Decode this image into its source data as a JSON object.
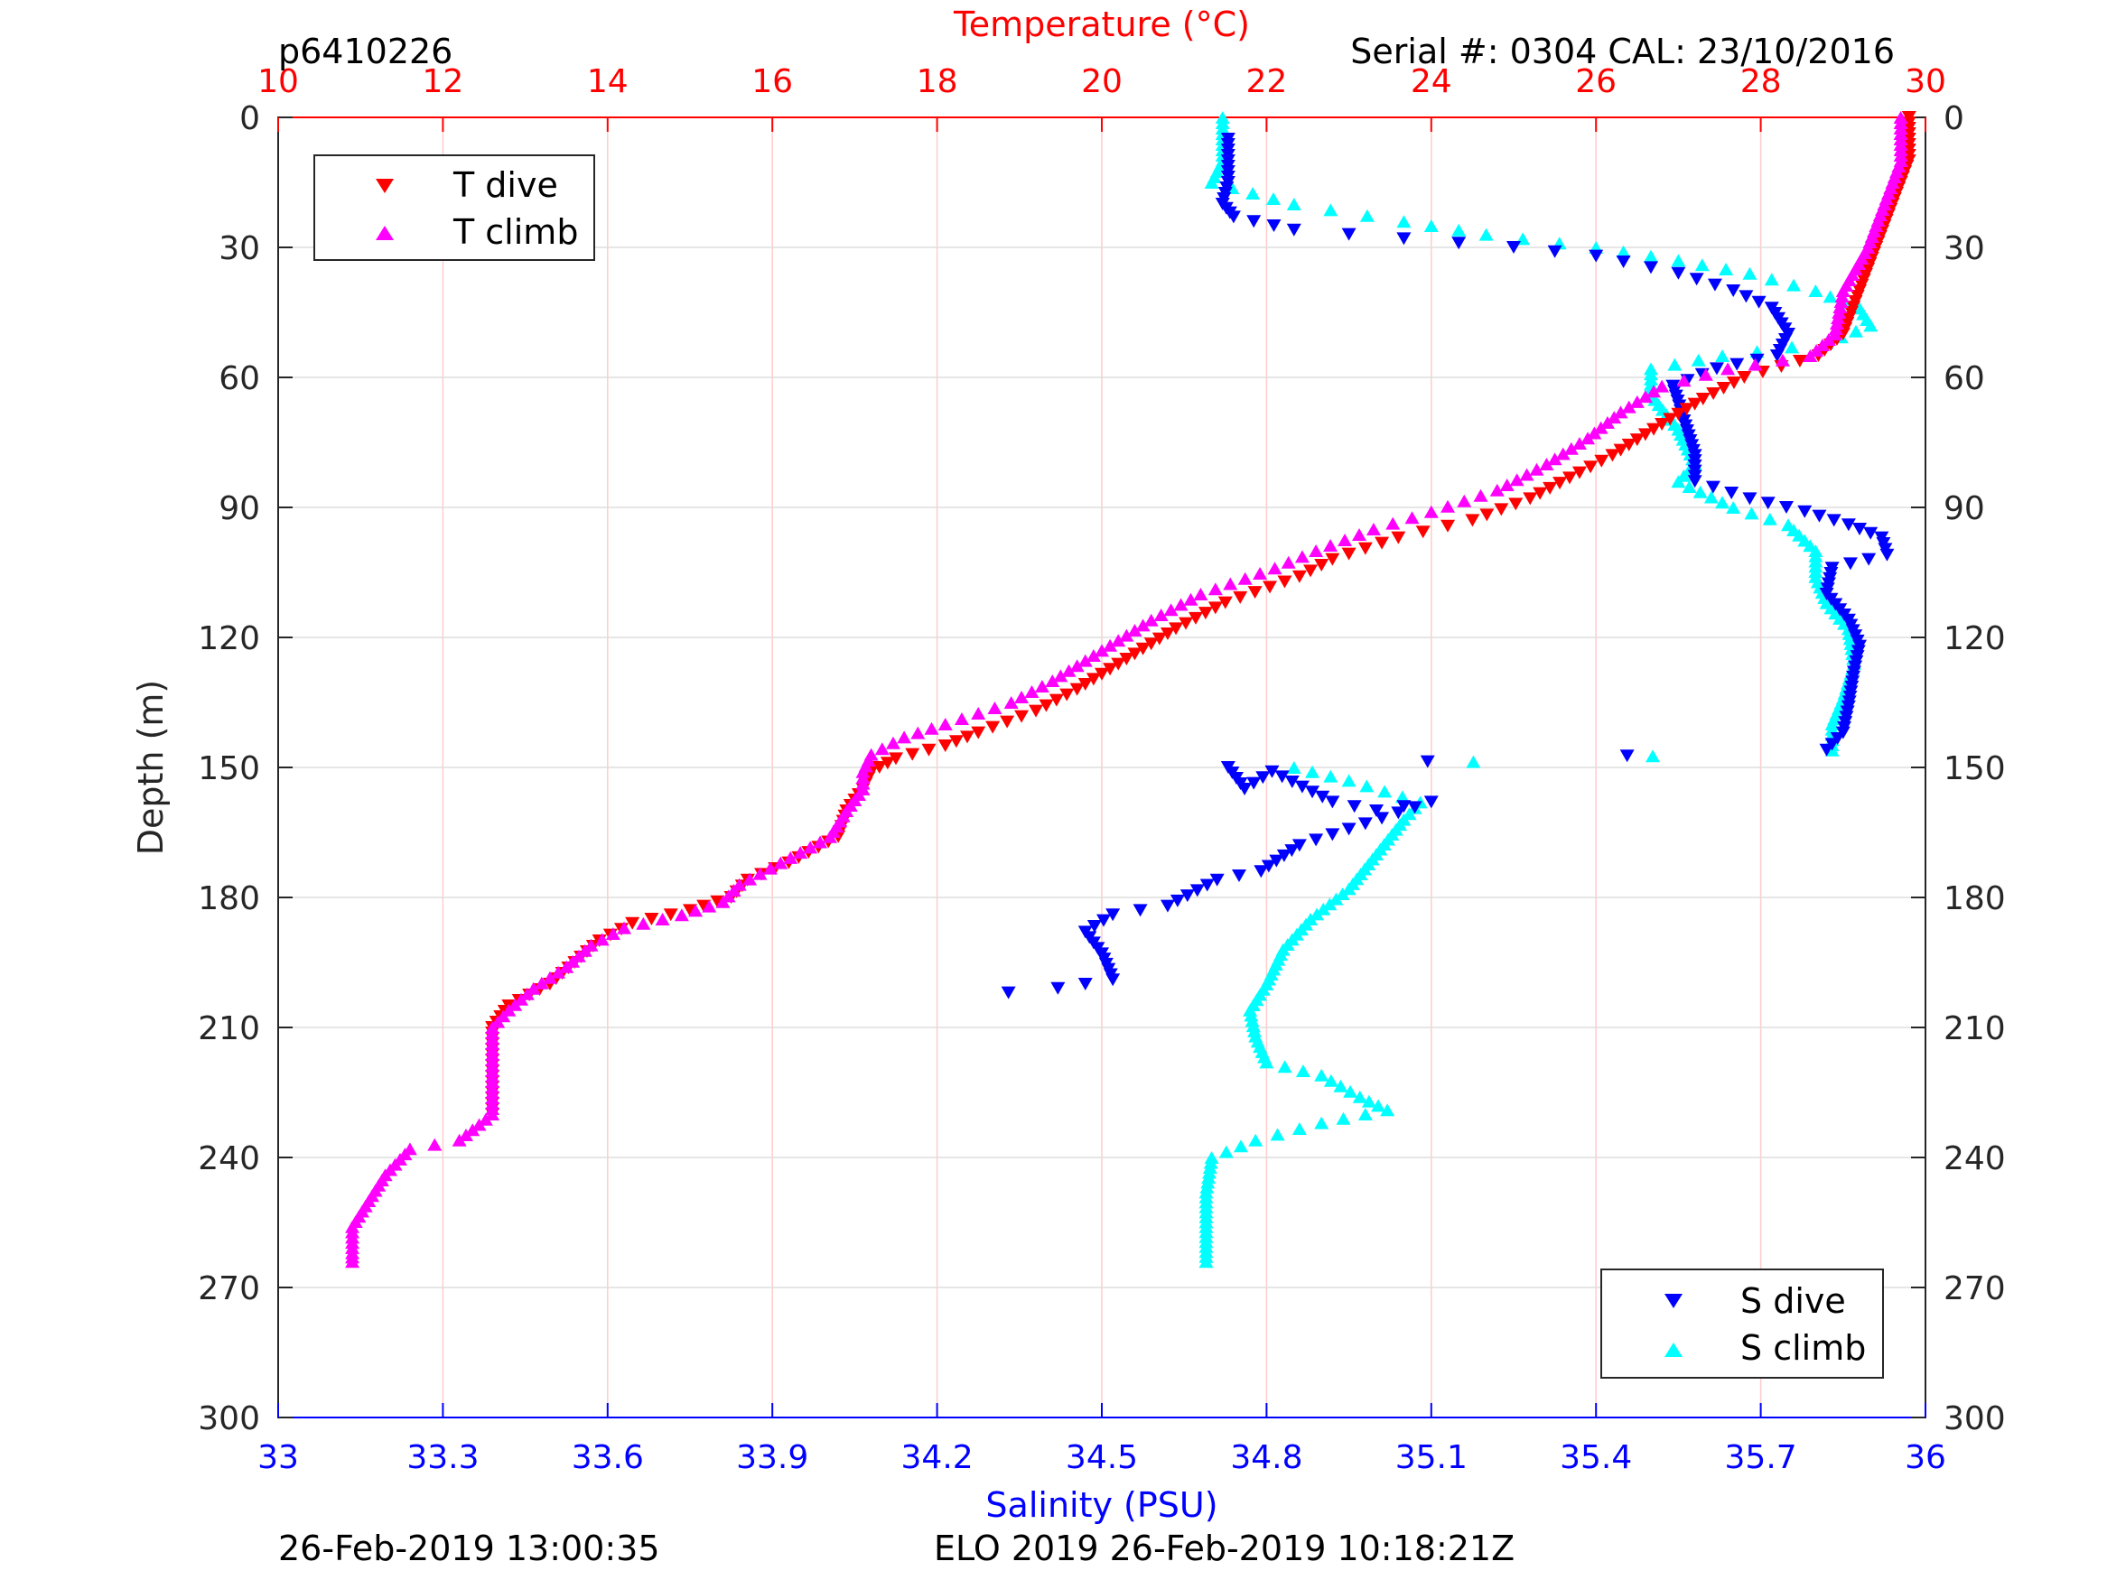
{
  "header": {
    "glider_id": "p6410226",
    "serial_cal": "Serial #: 0304  CAL: 23/10/2016"
  },
  "footer": {
    "left_timestamp": "26-Feb-2019 13:00:35",
    "mission": "ELO 2019 26-Feb-2019 10:18:21Z"
  },
  "colors": {
    "t_dive": "#ff0000",
    "t_climb": "#ff00ff",
    "s_dive": "#0000ff",
    "s_climb": "#00ffff",
    "temperature_axis": "#ff0000",
    "salinity_axis": "#0000ff",
    "grid_temperature": "#ffcccc",
    "grid_depth": "#dddddd"
  },
  "chart_data": {
    "type": "scatter",
    "ylabel": "Depth (m)",
    "x_top_label": "Temperature (°C)",
    "x_bottom_label": "Salinity (PSU)",
    "ylim": [
      0,
      300
    ],
    "y_reversed": true,
    "temperature_lim": [
      10,
      30
    ],
    "salinity_lim": [
      33,
      36
    ],
    "y_ticks": [
      "0",
      "30",
      "60",
      "90",
      "120",
      "150",
      "180",
      "210",
      "240",
      "270",
      "300"
    ],
    "temperature_ticks": [
      "10",
      "12",
      "14",
      "16",
      "18",
      "20",
      "22",
      "24",
      "26",
      "28",
      "30"
    ],
    "salinity_ticks": [
      "33",
      "33.3",
      "33.6",
      "33.9",
      "34.2",
      "34.5",
      "34.8",
      "35.1",
      "35.4",
      "35.7",
      "36"
    ],
    "grid": true,
    "legend_top": {
      "placement": "top-left",
      "entries": [
        {
          "name": "T dive",
          "marker": "triangle-down",
          "color": "#ff0000"
        },
        {
          "name": "T climb",
          "marker": "triangle-up",
          "color": "#ff00ff"
        }
      ]
    },
    "legend_bottom": {
      "placement": "bottom-right",
      "entries": [
        {
          "name": "S dive",
          "marker": "triangle-down",
          "color": "#0000ff"
        },
        {
          "name": "S climb",
          "marker": "triangle-up",
          "color": "#00ffff"
        }
      ]
    },
    "series": [
      {
        "name": "T dive",
        "axis": "temperature",
        "marker": "triangle-down",
        "color": "#ff0000",
        "points": [
          [
            29.8,
            0
          ],
          [
            29.8,
            10
          ],
          [
            29.6,
            20
          ],
          [
            29.4,
            30
          ],
          [
            29.2,
            40
          ],
          [
            29.0,
            50
          ],
          [
            28.7,
            55
          ],
          [
            27.8,
            60
          ],
          [
            27.3,
            65
          ],
          [
            26.7,
            72
          ],
          [
            26.2,
            78
          ],
          [
            25.8,
            82
          ],
          [
            25.2,
            88
          ],
          [
            24.5,
            93
          ],
          [
            23.6,
            97
          ],
          [
            22.8,
            102
          ],
          [
            22.4,
            106
          ],
          [
            21.5,
            112
          ],
          [
            20.9,
            118
          ],
          [
            20.3,
            125
          ],
          [
            19.7,
            132
          ],
          [
            19.2,
            137
          ],
          [
            18.5,
            142
          ],
          [
            18.1,
            145
          ],
          [
            17.5,
            148
          ],
          [
            17.2,
            151
          ],
          [
            17.1,
            155
          ],
          [
            16.9,
            160
          ],
          [
            16.8,
            166
          ],
          [
            16.2,
            172
          ],
          [
            15.7,
            176
          ],
          [
            15.5,
            180
          ],
          [
            15.0,
            183
          ],
          [
            14.3,
            186
          ],
          [
            13.9,
            190
          ],
          [
            13.6,
            195
          ],
          [
            13.3,
            200
          ],
          [
            12.8,
            205
          ],
          [
            12.6,
            210
          ],
          [
            12.6,
            220
          ],
          [
            12.6,
            230
          ]
        ]
      },
      {
        "name": "T climb",
        "axis": "temperature",
        "marker": "triangle-up",
        "color": "#ff00ff",
        "points": [
          [
            29.7,
            0
          ],
          [
            29.7,
            10
          ],
          [
            29.5,
            20
          ],
          [
            29.3,
            30
          ],
          [
            29.0,
            40
          ],
          [
            28.9,
            50
          ],
          [
            28.6,
            55
          ],
          [
            27.6,
            58
          ],
          [
            26.8,
            62
          ],
          [
            26.3,
            68
          ],
          [
            25.9,
            74
          ],
          [
            25.4,
            80
          ],
          [
            24.8,
            86
          ],
          [
            24.0,
            91
          ],
          [
            23.3,
            95
          ],
          [
            22.6,
            100
          ],
          [
            22.1,
            104
          ],
          [
            21.2,
            110
          ],
          [
            20.6,
            116
          ],
          [
            20.0,
            123
          ],
          [
            19.4,
            130
          ],
          [
            18.9,
            135
          ],
          [
            18.1,
            140
          ],
          [
            17.6,
            143
          ],
          [
            17.2,
            147
          ],
          [
            17.1,
            151
          ],
          [
            17.1,
            155
          ],
          [
            16.9,
            160
          ],
          [
            16.7,
            166
          ],
          [
            16.1,
            172
          ],
          [
            15.6,
            177
          ],
          [
            15.4,
            181
          ],
          [
            14.9,
            184
          ],
          [
            14.2,
            187
          ],
          [
            13.8,
            191
          ],
          [
            13.5,
            196
          ],
          [
            13.1,
            201
          ],
          [
            12.8,
            206
          ],
          [
            12.6,
            210
          ],
          [
            12.6,
            220
          ],
          [
            12.6,
            230
          ],
          [
            12.2,
            236
          ],
          [
            11.6,
            238
          ],
          [
            11.3,
            244
          ],
          [
            11.1,
            250
          ],
          [
            10.9,
            256
          ],
          [
            10.9,
            262
          ],
          [
            10.9,
            264
          ]
        ]
      },
      {
        "name": "S dive",
        "axis": "salinity",
        "marker": "triangle-down",
        "color": "#0000ff",
        "points": [
          [
            34.73,
            5
          ],
          [
            34.73,
            15
          ],
          [
            34.72,
            20
          ],
          [
            34.74,
            23
          ],
          [
            34.85,
            26
          ],
          [
            35.05,
            28
          ],
          [
            35.25,
            30
          ],
          [
            35.4,
            32
          ],
          [
            35.55,
            36
          ],
          [
            35.65,
            40
          ],
          [
            35.72,
            44
          ],
          [
            35.75,
            50
          ],
          [
            35.73,
            55
          ],
          [
            35.62,
            58
          ],
          [
            35.54,
            62
          ],
          [
            35.56,
            70
          ],
          [
            35.58,
            78
          ],
          [
            35.58,
            84
          ],
          [
            35.68,
            88
          ],
          [
            35.78,
            91
          ],
          [
            35.86,
            94
          ],
          [
            35.92,
            97
          ],
          [
            35.93,
            101
          ],
          [
            35.83,
            104
          ],
          [
            35.82,
            110
          ],
          [
            35.86,
            116
          ],
          [
            35.88,
            122
          ],
          [
            35.87,
            128
          ],
          [
            35.86,
            136
          ],
          [
            35.85,
            142
          ],
          [
            35.82,
            146
          ],
          [
            34.73,
            150
          ],
          [
            34.76,
            155
          ],
          [
            34.81,
            151
          ],
          [
            34.92,
            158
          ],
          [
            35.0,
            160
          ],
          [
            35.1,
            158
          ],
          [
            34.86,
            168
          ],
          [
            34.79,
            174
          ],
          [
            34.71,
            176
          ],
          [
            34.62,
            182
          ],
          [
            34.52,
            184
          ],
          [
            34.47,
            188
          ],
          [
            34.5,
            193
          ],
          [
            34.52,
            199
          ],
          [
            34.42,
            201
          ],
          [
            34.33,
            202
          ]
        ]
      },
      {
        "name": "S climb",
        "axis": "salinity",
        "marker": "triangle-up",
        "color": "#00ffff",
        "points": [
          [
            34.72,
            0
          ],
          [
            34.72,
            10
          ],
          [
            34.7,
            15
          ],
          [
            34.85,
            20
          ],
          [
            35.05,
            24
          ],
          [
            35.2,
            27
          ],
          [
            35.4,
            30
          ],
          [
            35.55,
            33
          ],
          [
            35.68,
            36
          ],
          [
            35.8,
            40
          ],
          [
            35.88,
            44
          ],
          [
            35.9,
            48
          ],
          [
            35.82,
            52
          ],
          [
            35.63,
            55
          ],
          [
            35.5,
            58
          ],
          [
            35.5,
            64
          ],
          [
            35.55,
            72
          ],
          [
            35.58,
            80
          ],
          [
            35.55,
            84
          ],
          [
            35.65,
            90
          ],
          [
            35.75,
            94
          ],
          [
            35.8,
            100
          ],
          [
            35.8,
            106
          ],
          [
            35.82,
            112
          ],
          [
            35.86,
            118
          ],
          [
            35.87,
            126
          ],
          [
            35.85,
            134
          ],
          [
            35.83,
            140
          ],
          [
            35.83,
            146
          ],
          [
            34.85,
            150
          ],
          [
            34.95,
            153
          ],
          [
            35.08,
            158
          ],
          [
            35.05,
            162
          ],
          [
            35.0,
            170
          ],
          [
            34.95,
            178
          ],
          [
            34.88,
            185
          ],
          [
            34.83,
            192
          ],
          [
            34.8,
            200
          ],
          [
            34.77,
            206
          ],
          [
            34.78,
            212
          ],
          [
            34.8,
            218
          ],
          [
            34.9,
            221
          ],
          [
            34.97,
            226
          ],
          [
            35.02,
            229
          ],
          [
            34.9,
            232
          ],
          [
            34.78,
            236
          ],
          [
            34.7,
            240
          ],
          [
            34.69,
            248
          ],
          [
            34.69,
            256
          ],
          [
            34.69,
            264
          ]
        ]
      }
    ]
  }
}
